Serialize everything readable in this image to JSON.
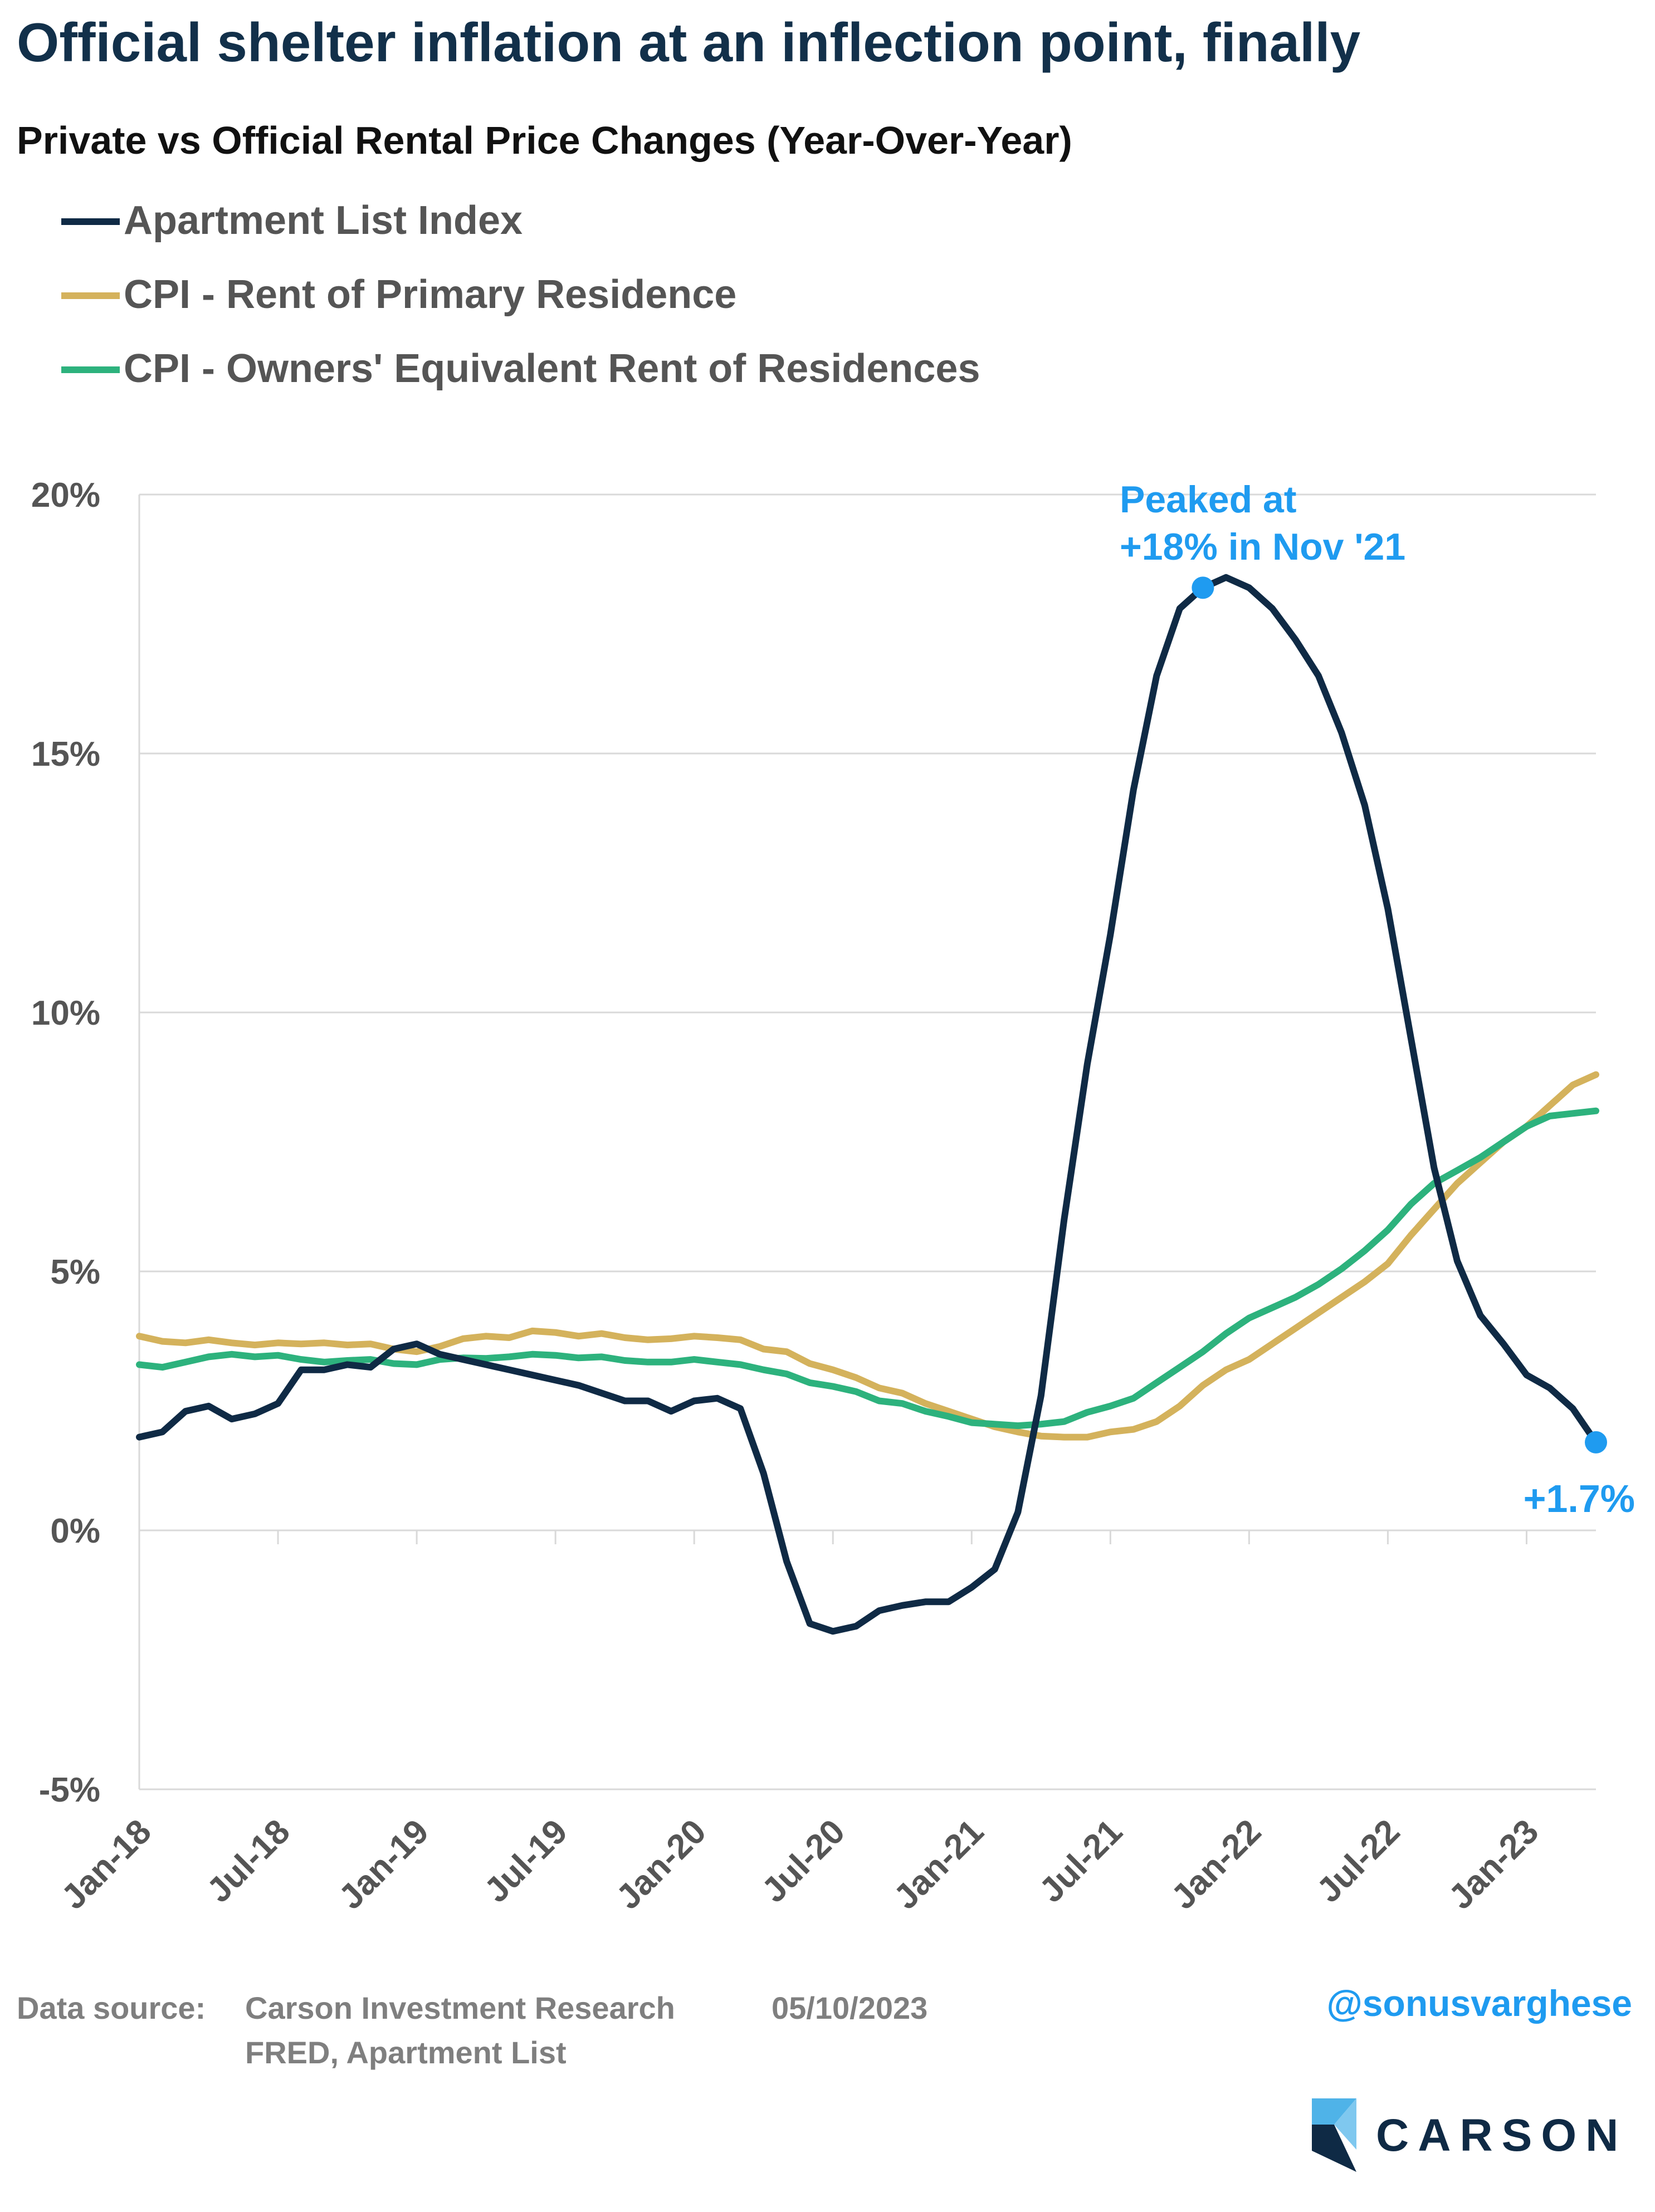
{
  "header": {
    "title": "Official shelter inflation at an inflection point, finally",
    "subtitle": "Private vs Official Rental Price Changes (Year-Over-Year)"
  },
  "colors": {
    "title": "#12304a",
    "navy": "#0f2a45",
    "gold": "#d4b25c",
    "green": "#2db27d",
    "accent": "#1f9bf0",
    "axis_text": "#555555",
    "grid": "#d9d9d9",
    "source_text": "#7f7f7f"
  },
  "chart_data": {
    "type": "line",
    "title": "Private vs Official Rental Price Changes (Year-Over-Year)",
    "x_tick_labels": [
      "Jan-18",
      "Jul-18",
      "Jan-19",
      "Jul-19",
      "Jan-20",
      "Jul-20",
      "Jan-21",
      "Jul-21",
      "Jan-22",
      "Jul-22",
      "Jan-23"
    ],
    "x_start": "Jan-18",
    "x_end": "Apr-23",
    "y_tick_labels": [
      "20%",
      "15%",
      "10%",
      "5%",
      "0%",
      "-5%"
    ],
    "ylim": [
      -5,
      20
    ],
    "grid": "horizontal",
    "legend_position": "top-left",
    "series": [
      {
        "name": "Apartment List Index",
        "color": "#0f2a45",
        "values": [
          1.8,
          1.9,
          2.3,
          2.4,
          2.15,
          2.25,
          2.45,
          3.1,
          3.1,
          3.2,
          3.15,
          3.5,
          3.6,
          3.4,
          3.3,
          3.2,
          3.1,
          3.0,
          2.9,
          2.8,
          2.65,
          2.5,
          2.5,
          2.3,
          2.5,
          2.55,
          2.35,
          1.1,
          -0.6,
          -1.8,
          -1.95,
          -1.85,
          -1.55,
          -1.45,
          -1.38,
          -1.38,
          -1.1,
          -0.75,
          0.35,
          2.6,
          6.0,
          9.0,
          11.5,
          14.3,
          16.5,
          17.8,
          18.2,
          18.4,
          18.2,
          17.8,
          17.2,
          16.5,
          15.4,
          14.0,
          12.0,
          9.5,
          7.0,
          5.2,
          4.15,
          3.6,
          3.0,
          2.75,
          2.35,
          1.7
        ]
      },
      {
        "name": "CPI - Rent of Primary Residence",
        "color": "#d4b25c",
        "values": [
          3.75,
          3.65,
          3.62,
          3.68,
          3.62,
          3.58,
          3.62,
          3.6,
          3.62,
          3.58,
          3.6,
          3.5,
          3.45,
          3.55,
          3.7,
          3.75,
          3.72,
          3.85,
          3.82,
          3.75,
          3.8,
          3.72,
          3.68,
          3.7,
          3.75,
          3.72,
          3.68,
          3.5,
          3.45,
          3.22,
          3.1,
          2.95,
          2.75,
          2.65,
          2.45,
          2.3,
          2.15,
          2.0,
          1.9,
          1.82,
          1.8,
          1.8,
          1.9,
          1.95,
          2.1,
          2.4,
          2.8,
          3.1,
          3.3,
          3.6,
          3.9,
          4.2,
          4.5,
          4.8,
          5.15,
          5.7,
          6.2,
          6.7,
          7.1,
          7.5,
          7.8,
          8.2,
          8.6,
          8.8
        ]
      },
      {
        "name": "CPI - Owners' Equivalent Rent of Residences",
        "color": "#2db27d",
        "values": [
          3.2,
          3.15,
          3.25,
          3.35,
          3.4,
          3.35,
          3.38,
          3.3,
          3.25,
          3.28,
          3.3,
          3.22,
          3.2,
          3.3,
          3.33,
          3.32,
          3.35,
          3.4,
          3.38,
          3.33,
          3.35,
          3.28,
          3.25,
          3.25,
          3.3,
          3.25,
          3.2,
          3.1,
          3.02,
          2.85,
          2.78,
          2.68,
          2.5,
          2.45,
          2.3,
          2.2,
          2.08,
          2.05,
          2.02,
          2.05,
          2.1,
          2.28,
          2.4,
          2.55,
          2.85,
          3.15,
          3.45,
          3.8,
          4.1,
          4.3,
          4.5,
          4.75,
          5.05,
          5.4,
          5.8,
          6.3,
          6.7,
          6.95,
          7.2,
          7.5,
          7.8,
          8.0,
          8.05,
          8.1
        ]
      }
    ],
    "annotations": [
      {
        "series": 0,
        "index": 46,
        "value": 18.2,
        "lines": [
          "Peaked at",
          "+18% in Nov '21"
        ]
      },
      {
        "series": 0,
        "index": 63,
        "value": 1.7,
        "lines": [
          "+1.7%"
        ]
      }
    ]
  },
  "footer": {
    "source_prefix": "Data source:",
    "source_line1": "Carson Investment Research",
    "date": "05/10/2023",
    "source_line2": "FRED, Apartment List",
    "handle": "@sonusvarghese",
    "brand": "CARSON"
  }
}
